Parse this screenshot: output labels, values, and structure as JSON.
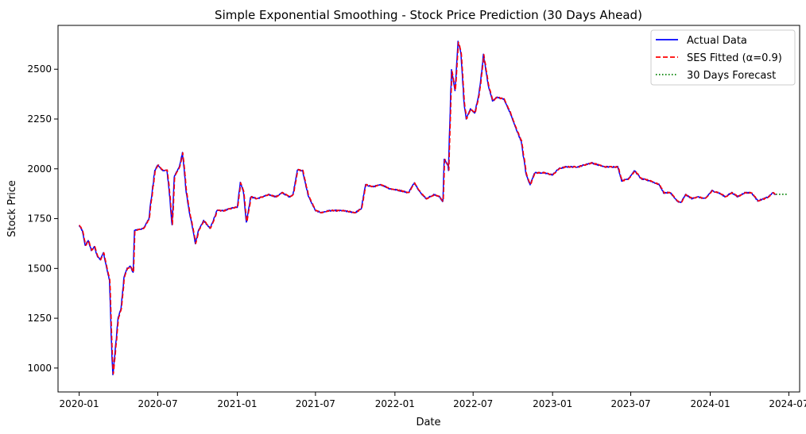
{
  "chart_data": {
    "type": "line",
    "title": "Simple Exponential Smoothing - Stock Price Prediction (30 Days Ahead)",
    "xlabel": "Date",
    "ylabel": "Stock Price",
    "x_range": [
      "2019-11-13",
      "2024-07-26"
    ],
    "ylim": [
      880,
      2720
    ],
    "x_ticks": [
      "2020-01",
      "2020-07",
      "2021-01",
      "2021-07",
      "2022-01",
      "2022-07",
      "2023-01",
      "2023-07",
      "2024-01",
      "2024-07"
    ],
    "y_ticks": [
      1000,
      1250,
      1500,
      1750,
      2000,
      2250,
      2500
    ],
    "grid": false,
    "legend_position": "upper right",
    "series": [
      {
        "name": "Actual Data",
        "color": "#0000ff",
        "style": "solid",
        "points": [
          [
            "2020-01-01",
            1715
          ],
          [
            "2020-01-08",
            1690
          ],
          [
            "2020-01-15",
            1615
          ],
          [
            "2020-01-22",
            1640
          ],
          [
            "2020-01-29",
            1590
          ],
          [
            "2020-02-05",
            1610
          ],
          [
            "2020-02-12",
            1560
          ],
          [
            "2020-02-19",
            1545
          ],
          [
            "2020-02-26",
            1580
          ],
          [
            "2020-03-04",
            1510
          ],
          [
            "2020-03-11",
            1440
          ],
          [
            "2020-03-17",
            1050
          ],
          [
            "2020-03-19",
            965
          ],
          [
            "2020-03-24",
            1080
          ],
          [
            "2020-03-31",
            1250
          ],
          [
            "2020-04-07",
            1300
          ],
          [
            "2020-04-14",
            1460
          ],
          [
            "2020-04-21",
            1500
          ],
          [
            "2020-04-28",
            1510
          ],
          [
            "2020-05-05",
            1480
          ],
          [
            "2020-05-08",
            1690
          ],
          [
            "2020-05-15",
            1695
          ],
          [
            "2020-05-29",
            1700
          ],
          [
            "2020-06-10",
            1750
          ],
          [
            "2020-06-24",
            1990
          ],
          [
            "2020-07-01",
            2020
          ],
          [
            "2020-07-08",
            2000
          ],
          [
            "2020-07-15",
            1990
          ],
          [
            "2020-07-22",
            1995
          ],
          [
            "2020-07-29",
            1850
          ],
          [
            "2020-08-03",
            1710
          ],
          [
            "2020-08-08",
            1960
          ],
          [
            "2020-08-20",
            2010
          ],
          [
            "2020-08-27",
            2080
          ],
          [
            "2020-09-05",
            1880
          ],
          [
            "2020-09-12",
            1780
          ],
          [
            "2020-09-20",
            1700
          ],
          [
            "2020-09-26",
            1625
          ],
          [
            "2020-10-03",
            1690
          ],
          [
            "2020-10-15",
            1740
          ],
          [
            "2020-10-30",
            1700
          ],
          [
            "2020-11-15",
            1790
          ],
          [
            "2020-12-01",
            1790
          ],
          [
            "2020-12-15",
            1800
          ],
          [
            "2021-01-01",
            1810
          ],
          [
            "2021-01-08",
            1930
          ],
          [
            "2021-01-15",
            1890
          ],
          [
            "2021-01-22",
            1730
          ],
          [
            "2021-02-01",
            1860
          ],
          [
            "2021-02-15",
            1850
          ],
          [
            "2021-03-01",
            1860
          ],
          [
            "2021-03-15",
            1870
          ],
          [
            "2021-04-01",
            1860
          ],
          [
            "2021-04-15",
            1880
          ],
          [
            "2021-05-01",
            1860
          ],
          [
            "2021-05-10",
            1870
          ],
          [
            "2021-05-20",
            1995
          ],
          [
            "2021-06-01",
            1990
          ],
          [
            "2021-06-15",
            1860
          ],
          [
            "2021-07-01",
            1790
          ],
          [
            "2021-07-15",
            1780
          ],
          [
            "2021-08-01",
            1790
          ],
          [
            "2021-09-01",
            1790
          ],
          [
            "2021-10-01",
            1780
          ],
          [
            "2021-10-15",
            1800
          ],
          [
            "2021-10-25",
            1920
          ],
          [
            "2021-11-10",
            1910
          ],
          [
            "2021-12-01",
            1920
          ],
          [
            "2021-12-20",
            1900
          ],
          [
            "2022-01-15",
            1890
          ],
          [
            "2022-02-01",
            1880
          ],
          [
            "2022-02-15",
            1930
          ],
          [
            "2022-03-01",
            1880
          ],
          [
            "2022-03-15",
            1850
          ],
          [
            "2022-04-01",
            1870
          ],
          [
            "2022-04-15",
            1860
          ],
          [
            "2022-04-22",
            1830
          ],
          [
            "2022-04-25",
            2050
          ],
          [
            "2022-05-05",
            2010
          ],
          [
            "2022-05-12",
            2500
          ],
          [
            "2022-05-20",
            2390
          ],
          [
            "2022-05-27",
            2640
          ],
          [
            "2022-06-03",
            2580
          ],
          [
            "2022-06-10",
            2330
          ],
          [
            "2022-06-15",
            2250
          ],
          [
            "2022-06-25",
            2300
          ],
          [
            "2022-07-05",
            2280
          ],
          [
            "2022-07-15",
            2380
          ],
          [
            "2022-07-25",
            2570
          ],
          [
            "2022-08-05",
            2420
          ],
          [
            "2022-08-15",
            2340
          ],
          [
            "2022-08-25",
            2360
          ],
          [
            "2022-09-10",
            2350
          ],
          [
            "2022-09-25",
            2280
          ],
          [
            "2022-10-05",
            2220
          ],
          [
            "2022-10-20",
            2140
          ],
          [
            "2022-11-01",
            1970
          ],
          [
            "2022-11-10",
            1920
          ],
          [
            "2022-11-20",
            1980
          ],
          [
            "2022-12-10",
            1980
          ],
          [
            "2023-01-01",
            1970
          ],
          [
            "2023-01-15",
            2000
          ],
          [
            "2023-02-01",
            2010
          ],
          [
            "2023-03-01",
            2010
          ],
          [
            "2023-04-01",
            2030
          ],
          [
            "2023-05-01",
            2010
          ],
          [
            "2023-06-01",
            2010
          ],
          [
            "2023-06-10",
            1940
          ],
          [
            "2023-06-25",
            1950
          ],
          [
            "2023-07-10",
            1990
          ],
          [
            "2023-07-25",
            1950
          ],
          [
            "2023-08-15",
            1940
          ],
          [
            "2023-09-05",
            1920
          ],
          [
            "2023-09-15",
            1880
          ],
          [
            "2023-10-01",
            1880
          ],
          [
            "2023-10-15",
            1840
          ],
          [
            "2023-10-25",
            1830
          ],
          [
            "2023-11-05",
            1870
          ],
          [
            "2023-11-20",
            1850
          ],
          [
            "2023-12-01",
            1860
          ],
          [
            "2023-12-20",
            1850
          ],
          [
            "2024-01-05",
            1890
          ],
          [
            "2024-01-20",
            1880
          ],
          [
            "2024-02-05",
            1860
          ],
          [
            "2024-02-20",
            1880
          ],
          [
            "2024-03-05",
            1860
          ],
          [
            "2024-03-20",
            1880
          ],
          [
            "2024-04-05",
            1880
          ],
          [
            "2024-04-20",
            1840
          ],
          [
            "2024-05-05",
            1850
          ],
          [
            "2024-05-15",
            1860
          ],
          [
            "2024-05-25",
            1880
          ],
          [
            "2024-05-31",
            1872
          ]
        ]
      },
      {
        "name": "SES Fitted (α=0.9)",
        "color": "#ff0000",
        "style": "dashed",
        "derived_from": "Actual Data",
        "alpha": 0.9
      },
      {
        "name": "30 Days Forecast",
        "color": "#008000",
        "style": "dotted",
        "points": [
          [
            "2024-06-01",
            1872
          ],
          [
            "2024-06-30",
            1872
          ]
        ]
      }
    ]
  }
}
